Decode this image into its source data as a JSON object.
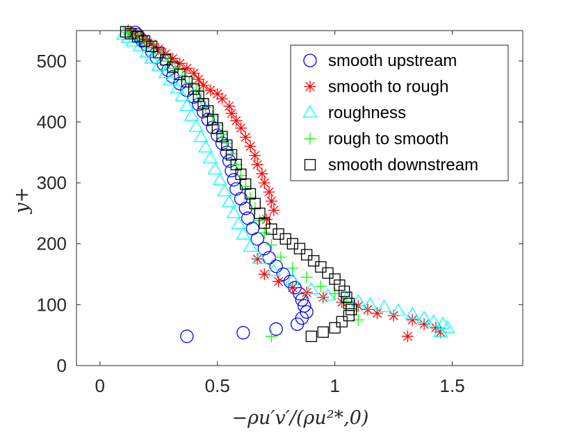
{
  "chart_data": {
    "type": "scatter",
    "title": "",
    "xlabel": "−ρu′v′/(ρu²*,0)",
    "ylabel": "y+",
    "xlim": [
      -0.1,
      1.8
    ],
    "ylim": [
      0,
      550
    ],
    "xticks": [
      0,
      0.5,
      1,
      1.5
    ],
    "xtick_labels": [
      "0",
      "0.5",
      "1",
      "1.5"
    ],
    "yticks": [
      0,
      100,
      200,
      300,
      400,
      500
    ],
    "ytick_labels": [
      "0",
      "100",
      "200",
      "300",
      "400",
      "500"
    ],
    "grid": false,
    "legend_position": "top-right",
    "series": [
      {
        "name": "smooth upstream",
        "marker": "circle",
        "color": "#0000ff",
        "x": [
          0.37,
          0.61,
          0.75,
          0.84,
          0.86,
          0.88,
          0.87,
          0.86,
          0.85,
          0.83,
          0.81,
          0.78,
          0.75,
          0.72,
          0.7,
          0.67,
          0.65,
          0.63,
          0.62,
          0.6,
          0.58,
          0.57,
          0.56,
          0.55,
          0.54,
          0.52,
          0.5,
          0.48,
          0.46,
          0.44,
          0.42,
          0.4,
          0.37,
          0.34,
          0.31,
          0.29,
          0.27,
          0.24,
          0.22,
          0.2,
          0.18,
          0.17,
          0.16,
          0.15
        ],
        "y": [
          48,
          54,
          60,
          68,
          78,
          88,
          98,
          108,
          118,
          128,
          138,
          150,
          163,
          177,
          192,
          208,
          225,
          242,
          258,
          274,
          290,
          305,
          320,
          336,
          350,
          365,
          378,
          391,
          404,
          417,
          429,
          441,
          452,
          463,
          474,
          485,
          495,
          506,
          516,
          526,
          533,
          538,
          543,
          547
        ]
      },
      {
        "name": "smooth to rough",
        "marker": "asterisk",
        "color": "#ff0000",
        "x": [
          1.31,
          1.45,
          1.43,
          1.38,
          1.33,
          1.25,
          1.18,
          1.14,
          1.1,
          1.03,
          0.95,
          0.88,
          0.82,
          0.76,
          0.7,
          0.67,
          0.71,
          0.74,
          0.73,
          0.72,
          0.7,
          0.69,
          0.67,
          0.66,
          0.64,
          0.62,
          0.6,
          0.58,
          0.56,
          0.55,
          0.52,
          0.5,
          0.47,
          0.44,
          0.42,
          0.4,
          0.37,
          0.34,
          0.31,
          0.28,
          0.25,
          0.22,
          0.19,
          0.16,
          0.14,
          0.12
        ],
        "y": [
          48,
          55,
          62,
          68,
          75,
          82,
          86,
          92,
          98,
          104,
          112,
          120,
          128,
          138,
          150,
          175,
          240,
          255,
          270,
          285,
          300,
          315,
          330,
          345,
          360,
          375,
          390,
          402,
          414,
          426,
          438,
          446,
          452,
          460,
          470,
          480,
          488,
          496,
          504,
          512,
          520,
          528,
          535,
          541,
          546,
          550
        ]
      },
      {
        "name": "roughness",
        "marker": "triangle",
        "color": "#00ffff",
        "x": [
          1.45,
          1.48,
          1.46,
          1.42,
          1.38,
          1.33,
          1.27,
          1.21,
          1.15,
          1.1,
          1.05,
          0.97,
          0.9,
          0.82,
          0.74,
          0.68,
          0.64,
          0.61,
          0.59,
          0.57,
          0.55,
          0.53,
          0.51,
          0.49,
          0.47,
          0.45,
          0.43,
          0.41,
          0.39,
          0.37,
          0.35,
          0.33,
          0.3,
          0.28,
          0.25,
          0.22,
          0.2,
          0.17,
          0.14,
          0.12,
          0.1
        ],
        "y": [
          55,
          62,
          68,
          72,
          78,
          84,
          90,
          96,
          100,
          105,
          110,
          115,
          125,
          140,
          155,
          175,
          195,
          215,
          232,
          250,
          268,
          286,
          304,
          322,
          340,
          358,
          375,
          392,
          410,
          426,
          442,
          455,
          468,
          480,
          492,
          504,
          514,
          524,
          532,
          538,
          543
        ]
      },
      {
        "name": "rough to smooth",
        "marker": "plus",
        "color": "#00ff00",
        "x": [
          0.73,
          1.1,
          1.08,
          1.05,
          1.0,
          0.94,
          0.88,
          0.82,
          0.77,
          0.73,
          0.7,
          0.68,
          0.66,
          0.64,
          0.62,
          0.6,
          0.58,
          0.56,
          0.54,
          0.52,
          0.5,
          0.48,
          0.45,
          0.43,
          0.41,
          0.38,
          0.35,
          0.32,
          0.29,
          0.26,
          0.23,
          0.2,
          0.17,
          0.15,
          0.12
        ],
        "y": [
          48,
          75,
          90,
          105,
          118,
          130,
          145,
          160,
          178,
          198,
          218,
          238,
          258,
          276,
          294,
          312,
          330,
          348,
          365,
          380,
          395,
          410,
          424,
          438,
          452,
          464,
          476,
          488,
          500,
          512,
          522,
          531,
          538,
          543,
          547
        ]
      },
      {
        "name": "smooth downstream",
        "marker": "square",
        "color": "#000000",
        "x": [
          0.9,
          0.95,
          1.0,
          1.03,
          1.06,
          1.07,
          1.06,
          1.05,
          1.04,
          1.02,
          1.0,
          0.97,
          0.94,
          0.91,
          0.88,
          0.85,
          0.82,
          0.79,
          0.76,
          0.73,
          0.7,
          0.68,
          0.66,
          0.64,
          0.62,
          0.6,
          0.58,
          0.56,
          0.54,
          0.52,
          0.5,
          0.48,
          0.46,
          0.44,
          0.42,
          0.4,
          0.37,
          0.34,
          0.31,
          0.28,
          0.25,
          0.22,
          0.19,
          0.16,
          0.13,
          0.11
        ],
        "y": [
          48,
          55,
          62,
          72,
          82,
          92,
          102,
          112,
          122,
          132,
          142,
          152,
          162,
          172,
          182,
          192,
          200,
          208,
          216,
          224,
          234,
          250,
          266,
          282,
          298,
          314,
          330,
          346,
          362,
          376,
          390,
          404,
          418,
          430,
          442,
          454,
          466,
          478,
          490,
          502,
          514,
          524,
          533,
          540,
          545,
          548
        ]
      }
    ]
  }
}
